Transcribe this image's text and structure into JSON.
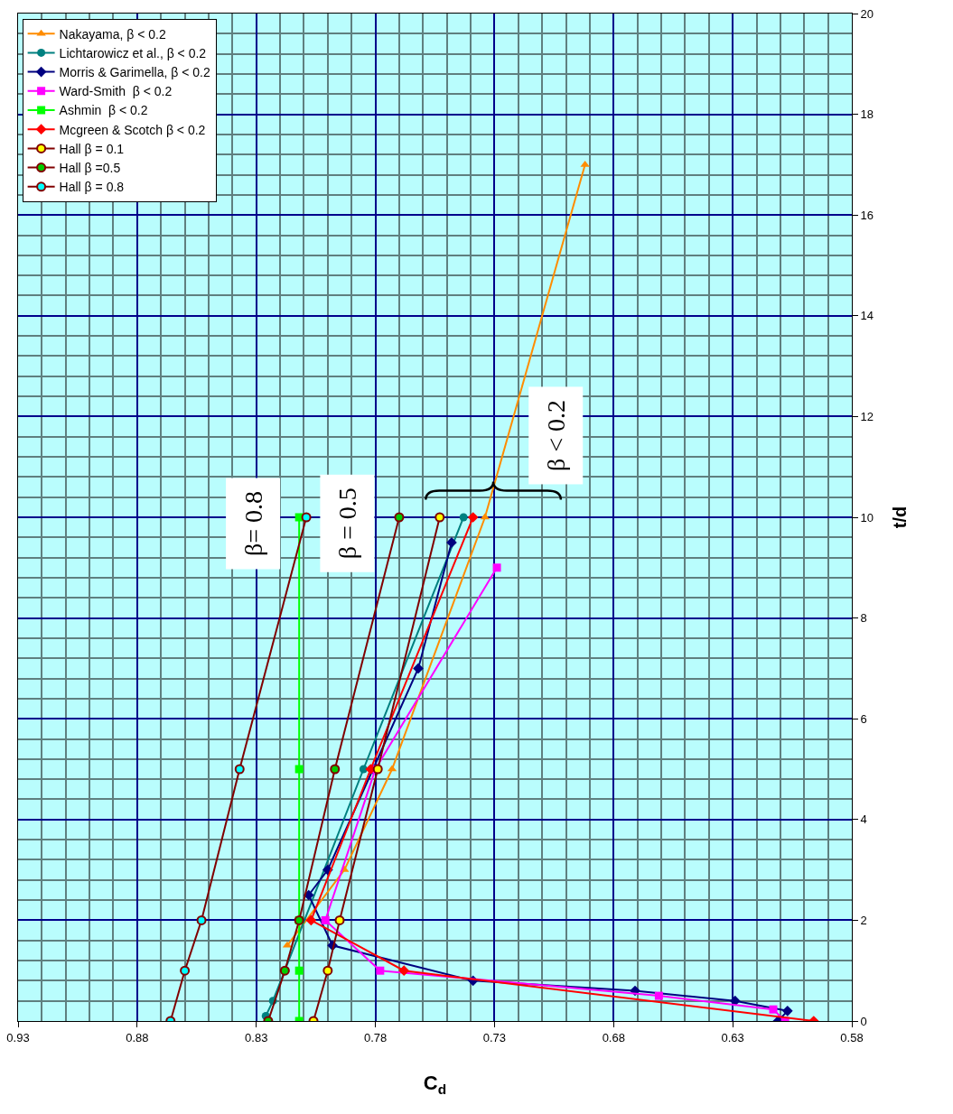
{
  "chart_data": {
    "type": "line",
    "xlabel": "C$_{d}$",
    "ylabel": "t/d",
    "xlim": [
      0.93,
      0.58
    ],
    "xticks": [
      0.93,
      0.88,
      0.83,
      0.78,
      0.73,
      0.68,
      0.63,
      0.58
    ],
    "ylim": [
      0,
      20
    ],
    "yticks": [
      0,
      2,
      4,
      6,
      8,
      10,
      12,
      14,
      16,
      18,
      20
    ],
    "grid": true,
    "legend": "top left",
    "series": [
      {
        "name": "Nakayama, β < 0.2",
        "color": "#ff8c00",
        "marker": "triangle",
        "x": [
          0.817,
          0.793,
          0.773,
          0.734,
          0.692
        ],
        "values": [
          1.5,
          3,
          5,
          10,
          17
        ]
      },
      {
        "name": "Lichtarowicz et al., β < 0.2",
        "color": "#008080",
        "marker": "circle",
        "x": [
          0.826,
          0.823,
          0.785,
          0.743
        ],
        "values": [
          0.1,
          0.4,
          5,
          10
        ]
      },
      {
        "name": "Morris & Garimella, β < 0.2",
        "color": "#000080",
        "marker": "diamond",
        "x": [
          0.611,
          0.607,
          0.629,
          0.671,
          0.739,
          0.798,
          0.808,
          0.8,
          0.781,
          0.762,
          0.748
        ],
        "values": [
          0,
          0.2,
          0.4,
          0.6,
          0.8,
          1.5,
          2.5,
          3,
          5,
          7,
          9.5
        ]
      },
      {
        "name": "Ward-Smith  β < 0.2",
        "color": "#ff00ff",
        "marker": "square",
        "x": [
          0.608,
          0.613,
          0.661,
          0.778,
          0.801,
          0.78,
          0.729
        ],
        "values": [
          0,
          0.23,
          0.5,
          1,
          2,
          5,
          9
        ]
      },
      {
        "name": "Ashmin  β < 0.2",
        "color": "#00ff00",
        "marker": "square",
        "x": [
          0.812,
          0.812,
          0.812,
          0.812,
          0.812
        ],
        "values": [
          0,
          1,
          2,
          5,
          10
        ]
      },
      {
        "name": "Mcgreen & Scotch β < 0.2",
        "color": "#ff0000",
        "marker": "diamond",
        "x": [
          0.596,
          0.768,
          0.807,
          0.782,
          0.739
        ],
        "values": [
          0,
          1,
          2,
          5,
          10
        ]
      },
      {
        "name": "Hall β = 0.1",
        "color": "#800000",
        "colors": [
          "#ffff00",
          "#ffff00",
          "#ffff00",
          "#ffff00",
          "#ffff00"
        ],
        "marker": "circle",
        "x": [
          0.806,
          0.8,
          0.795,
          0.779,
          0.753
        ],
        "values": [
          0,
          1,
          2,
          5,
          10
        ]
      },
      {
        "name": "Hall β =0.5",
        "color": "#800000",
        "colors": [
          "#00cc00",
          "#00cc00",
          "#00cc00",
          "#00cc00",
          "#00cc00"
        ],
        "marker": "circle",
        "x": [
          0.825,
          0.818,
          0.812,
          0.797,
          0.77
        ],
        "values": [
          0,
          1,
          2,
          5,
          10
        ]
      },
      {
        "name": "Hall β = 0.8",
        "color": "#800000",
        "colors": [
          "#00ffff",
          "#00ffff",
          "#00ffff",
          "#00ffff",
          "#00ffff"
        ],
        "marker": "circle",
        "x": [
          0.866,
          0.86,
          0.853,
          0.837,
          0.809
        ],
        "values": [
          0,
          1,
          2,
          5,
          10
        ]
      }
    ],
    "annotations": [
      "β= 0.8",
      "β = 0.5",
      "β < 0.2"
    ]
  }
}
